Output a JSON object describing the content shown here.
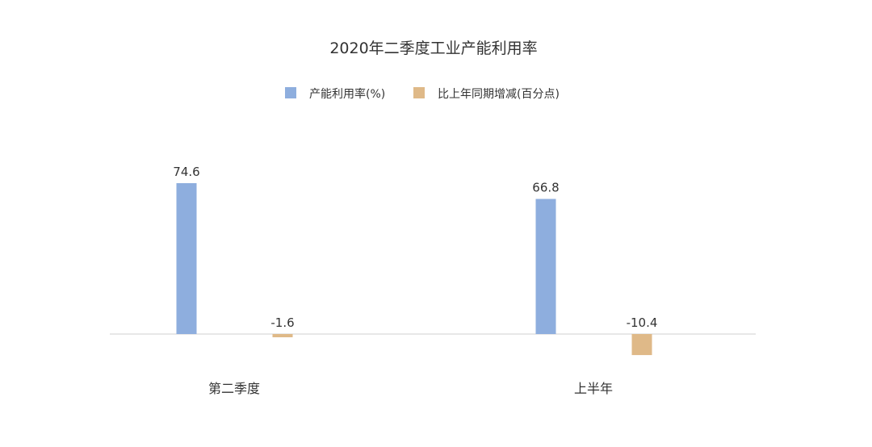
{
  "chart_data": {
    "type": "bar",
    "title": "2020年二季度工业产能利用率",
    "categories": [
      "第二季度",
      "上半年"
    ],
    "series": [
      {
        "name": "产能利用率(%)",
        "values": [
          74.6,
          66.8
        ],
        "color": "#8eaede"
      },
      {
        "name": "比上年同期增减(百分点)",
        "values": [
          -1.6,
          -10.4
        ],
        "color": "#dfb988"
      }
    ],
    "data_labels": [
      [
        "74.6",
        "66.8"
      ],
      [
        "-1.6",
        "-10.4"
      ]
    ],
    "legend_position": "top-center",
    "grid": false
  }
}
